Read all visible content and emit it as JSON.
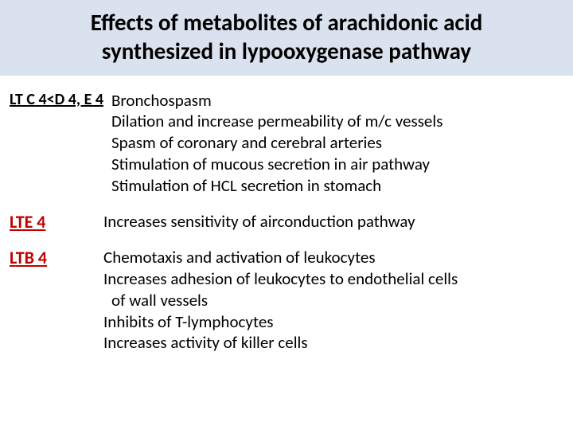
{
  "title": {
    "line1": "Effects  of  metabolites  of arachidonic  acid",
    "line2": "synthesized  in  lypooxygenase  pathway"
  },
  "sections": [
    {
      "label": "LT  C 4<D 4, E 4",
      "effects": [
        "Bronchospasm",
        "Dilation  and  increase  permeability  of m/c  vessels",
        "Spasm  of  coronary  and cerebral   arteries",
        "Stimulation  of  mucous  secretion  in air pathway",
        " Stimulation   of  HCL  secretion  in stomach"
      ]
    },
    {
      "label": "LTE 4",
      "effects": [
        "Increases  sensitivity   of  airconduction  pathway"
      ]
    },
    {
      "label_first": "L",
      "label_rest": "TB 4",
      "effects": [
        "Chemotaxis  and  activation  of  leukocytes",
        "Increases  adhesion  of  leukocytes  to  endothelial  cells",
        "  of  wall vessels",
        "Inhibits  of  T-lymphocytes",
        "Increases  activity  of  killer  cells"
      ]
    }
  ],
  "colors": {
    "title_band_bg": "#dbe2ef",
    "body_bg": "#ffffff",
    "text": "#000000",
    "accent": "#c00000"
  }
}
